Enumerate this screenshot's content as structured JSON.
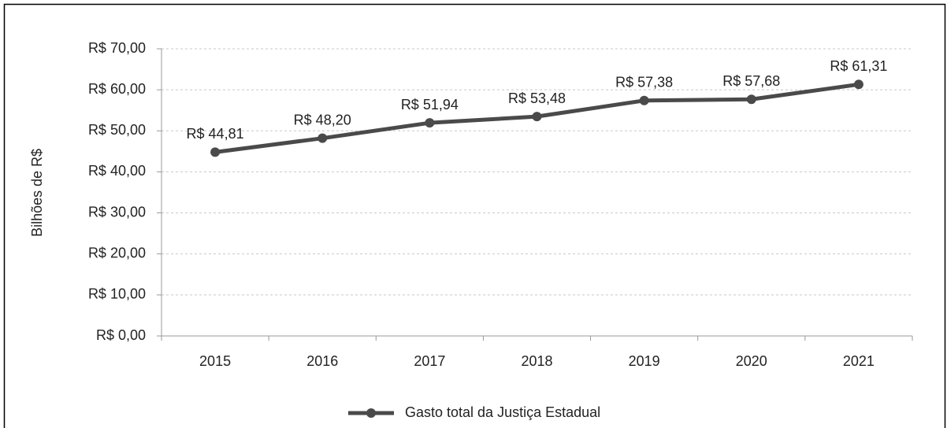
{
  "chart_data": {
    "type": "line",
    "y_label": "Bilhões de R$",
    "categories": [
      "2015",
      "2016",
      "2017",
      "2018",
      "2019",
      "2020",
      "2021"
    ],
    "series": [
      {
        "name": "Gasto total da Justiça Estadual",
        "color": "#4a4a4a",
        "values": [
          44.81,
          48.2,
          51.94,
          53.48,
          57.38,
          57.68,
          61.31
        ],
        "value_labels": [
          "R$ 44,81",
          "R$ 48,20",
          "R$ 51,94",
          "R$ 53,48",
          "R$ 57,38",
          "R$ 57,68",
          "R$ 61,31"
        ]
      }
    ],
    "ylim": [
      0,
      70
    ],
    "yticks": [
      {
        "value": 0,
        "label": "R$ 0,00"
      },
      {
        "value": 10,
        "label": "R$ 10,00"
      },
      {
        "value": 20,
        "label": "R$ 20,00"
      },
      {
        "value": 30,
        "label": "R$ 30,00"
      },
      {
        "value": 40,
        "label": "R$ 40,00"
      },
      {
        "value": 50,
        "label": "R$ 50,00"
      },
      {
        "value": 60,
        "label": "R$ 60,00"
      },
      {
        "value": 70,
        "label": "R$ 70,00"
      }
    ],
    "grid": true,
    "legend": "bottom"
  }
}
